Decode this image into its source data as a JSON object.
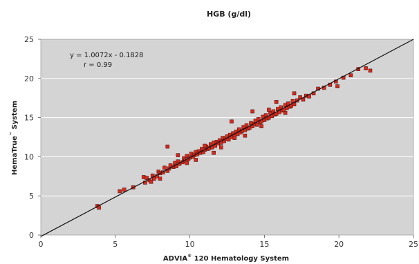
{
  "chart_data": {
    "type": "scatter",
    "title": "HGB (g/dl)",
    "xlabel_main": "ADVIA",
    "xlabel_mark": "®",
    "xlabel_rest": " 120 Hematology System",
    "ylabel_main": "HemaTrue",
    "ylabel_mark": "™",
    "ylabel_rest": " System",
    "xlim": [
      0,
      25
    ],
    "ylim": [
      0,
      25
    ],
    "x_ticks": [
      "0",
      "5",
      "10",
      "15",
      "20",
      "25"
    ],
    "y_ticks": [
      "0",
      "5",
      "10",
      "15",
      "20",
      "25"
    ],
    "grid": "horizontal",
    "plot_background": "#d4d4d4",
    "point_color": "#d42b1e",
    "point_edge_color": "#5a1410",
    "line_color": "#111111",
    "regression": {
      "slope": 1.0072,
      "intercept": -0.1828
    },
    "annotations": [
      "y = 1.0072x - 0.1828",
      "r = 0.99"
    ],
    "series": [
      {
        "x": [
          3.8,
          3.9,
          5.3,
          5.6,
          6.2,
          6.9,
          7.0,
          7.1,
          7.3,
          7.5,
          7.6,
          7.8,
          7.9,
          8.0,
          8.2,
          8.3,
          8.5,
          8.6,
          8.7,
          8.9,
          9.0,
          9.1,
          9.2,
          9.3,
          9.5,
          9.6,
          9.7,
          9.8,
          9.9,
          10.0,
          10.1,
          10.2,
          10.3,
          10.4,
          10.5,
          10.6,
          10.7,
          10.8,
          10.9,
          11.0,
          11.1,
          11.2,
          11.3,
          11.4,
          11.5,
          11.6,
          11.7,
          11.8,
          11.9,
          12.0,
          12.1,
          12.2,
          12.3,
          12.4,
          12.5,
          12.6,
          12.7,
          12.8,
          12.9,
          13.0,
          13.1,
          13.2,
          13.3,
          13.4,
          13.5,
          13.6,
          13.7,
          13.8,
          13.9,
          14.0,
          14.1,
          14.2,
          14.3,
          14.4,
          14.5,
          14.6,
          14.7,
          14.8,
          14.9,
          15.0,
          15.1,
          15.2,
          15.3,
          15.4,
          15.5,
          15.6,
          15.7,
          15.8,
          15.9,
          16.0,
          16.1,
          16.2,
          16.3,
          16.4,
          16.5,
          16.6,
          16.7,
          16.8,
          16.9,
          17.0,
          17.2,
          17.4,
          17.6,
          17.8,
          18.0,
          18.3,
          18.6,
          19.0,
          19.4,
          19.8,
          20.3,
          20.8,
          21.3,
          21.8,
          22.1,
          8.5,
          7.4,
          9.2,
          12.8,
          11.6,
          14.2,
          17.0,
          19.9,
          10.4,
          13.7,
          15.8,
          9.8,
          12.1,
          16.4,
          11.0,
          14.8,
          8.0,
          13.0,
          15.3
        ],
        "y": [
          3.7,
          3.5,
          5.6,
          5.8,
          6.1,
          7.4,
          6.7,
          7.3,
          7.0,
          7.6,
          7.2,
          7.5,
          8.1,
          7.9,
          8.0,
          8.6,
          8.2,
          8.5,
          8.9,
          8.7,
          9.2,
          8.8,
          9.4,
          9.1,
          9.3,
          9.8,
          9.5,
          10.1,
          9.7,
          9.9,
          10.4,
          10.0,
          10.2,
          10.6,
          10.3,
          10.7,
          10.5,
          11.0,
          10.6,
          10.9,
          11.3,
          11.0,
          11.1,
          11.6,
          11.2,
          11.8,
          11.4,
          11.9,
          11.7,
          12.1,
          11.8,
          12.4,
          12.0,
          12.3,
          12.6,
          12.2,
          12.8,
          12.5,
          13.0,
          12.7,
          13.2,
          12.9,
          13.5,
          13.1,
          13.3,
          13.8,
          13.4,
          14.0,
          13.6,
          13.7,
          14.3,
          13.9,
          14.2,
          14.6,
          14.1,
          14.8,
          14.4,
          14.5,
          15.1,
          14.7,
          15.3,
          14.9,
          15.0,
          15.6,
          15.2,
          15.8,
          15.4,
          15.5,
          16.1,
          15.7,
          16.3,
          15.9,
          16.0,
          16.6,
          16.2,
          16.8,
          16.4,
          16.5,
          17.1,
          16.7,
          17.2,
          17.6,
          17.3,
          17.8,
          17.7,
          18.1,
          18.7,
          18.8,
          19.2,
          19.6,
          20.1,
          20.4,
          21.2,
          21.3,
          21.0,
          11.3,
          6.8,
          10.2,
          14.5,
          10.5,
          15.8,
          18.1,
          19.0,
          9.6,
          12.7,
          17.0,
          9.2,
          11.2,
          15.6,
          11.4,
          13.9,
          7.2,
          12.4,
          16.0
        ]
      }
    ]
  }
}
